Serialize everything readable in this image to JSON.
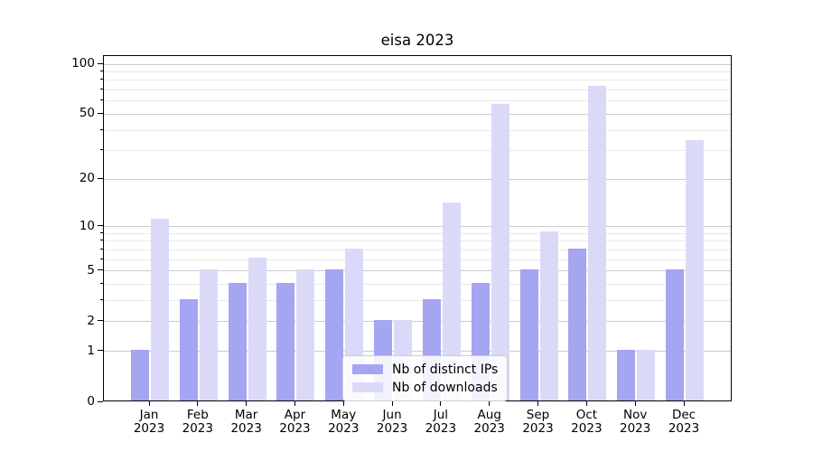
{
  "title": "eisa 2023",
  "chart_data": {
    "type": "bar",
    "title": "eisa 2023",
    "categories": [
      "Jan 2023",
      "Feb 2023",
      "Mar 2023",
      "Apr 2023",
      "May 2023",
      "Jun 2023",
      "Jul 2023",
      "Aug 2023",
      "Sep 2023",
      "Oct 2023",
      "Nov 2023",
      "Dec 2023"
    ],
    "x_months": [
      "Jan",
      "Feb",
      "Mar",
      "Apr",
      "May",
      "Jun",
      "Jul",
      "Aug",
      "Sep",
      "Oct",
      "Nov",
      "Dec"
    ],
    "x_year": "2023",
    "series": [
      {
        "name": "Nb of distinct IPs",
        "color": "#a5a5f2",
        "values": [
          1,
          3,
          4,
          4,
          5,
          2,
          3,
          4,
          5,
          7,
          1,
          5
        ]
      },
      {
        "name": "Nb of downloads",
        "color": "#dadaf8",
        "values": [
          11,
          5,
          6,
          5,
          7,
          2,
          14,
          56,
          9,
          72,
          1,
          34
        ]
      }
    ],
    "yscale": "log1p",
    "ylim": [
      0,
      112
    ],
    "yticks": [
      0,
      1,
      2,
      5,
      10,
      20,
      50,
      100
    ],
    "ytick_labels": [
      "0",
      "1",
      "2",
      "5",
      "10",
      "20",
      "50",
      "100"
    ],
    "yticks_minor": [
      3,
      4,
      6,
      7,
      8,
      9,
      30,
      40,
      60,
      70,
      80,
      90
    ],
    "grid": true,
    "legend_position": "lower center",
    "colors": {
      "grid_major": "#cccccc",
      "grid_minor": "#e9e9e9",
      "spine": "#000000",
      "background": "#ffffff"
    }
  }
}
